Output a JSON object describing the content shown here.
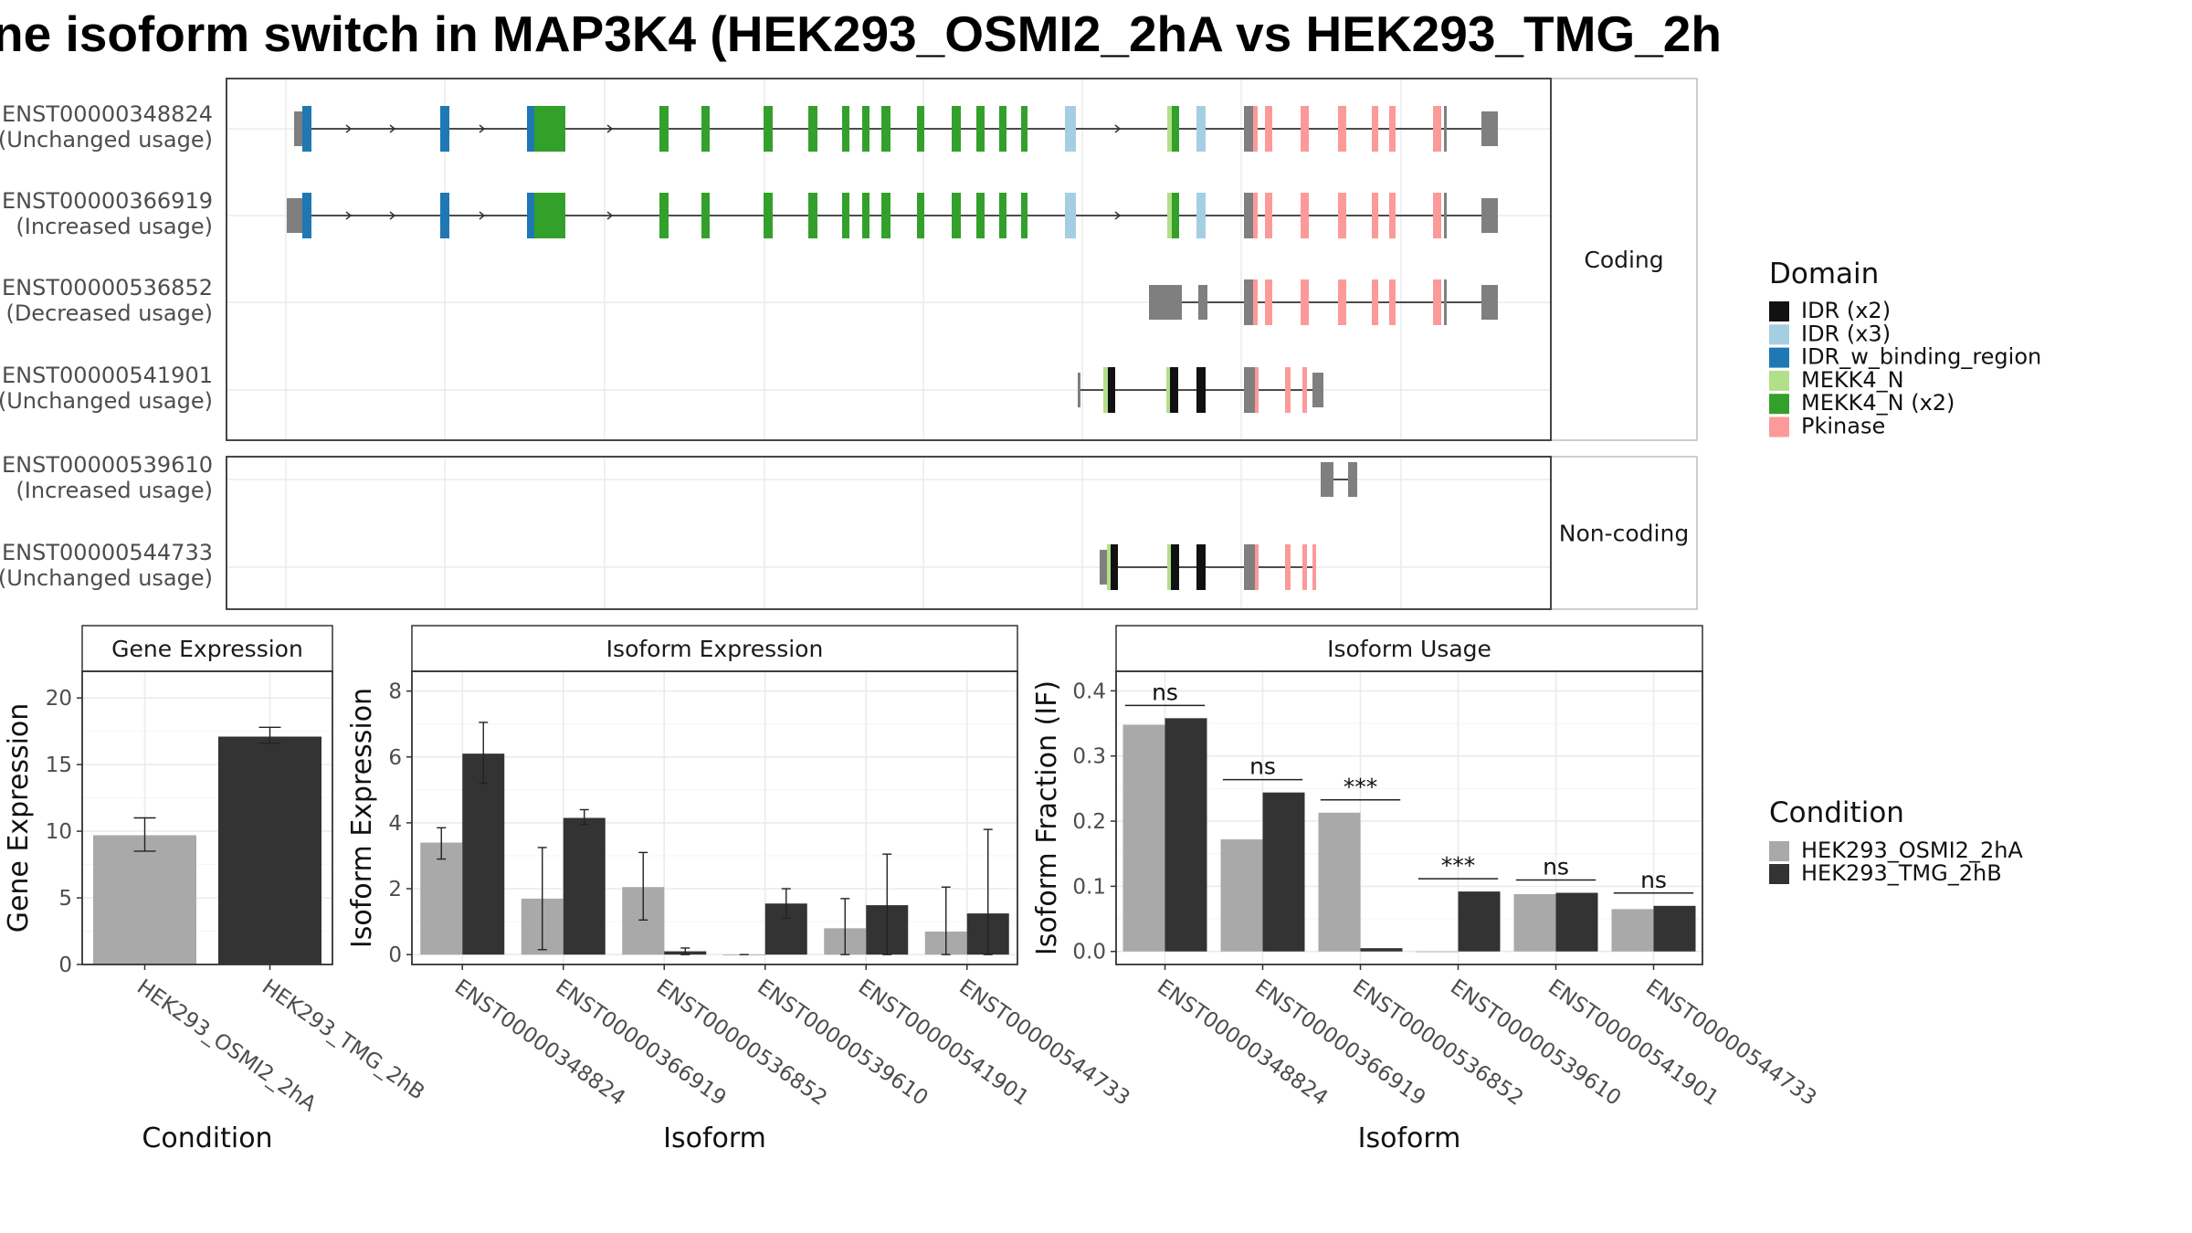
{
  "title": "ne isoform switch in MAP3K4 (HEK293_OSMI2_2hA vs HEK293_TMG_2h",
  "structure": {
    "groups": [
      {
        "name": "Coding",
        "transcripts": [
          {
            "id": "ENST00000348824",
            "usage": "(Unchanged usage)"
          },
          {
            "id": "ENST00000366919",
            "usage": "(Increased usage)"
          },
          {
            "id": "ENST00000536852",
            "usage": "(Decreased usage)"
          },
          {
            "id": "ENST00000541901",
            "usage": "(Unchanged usage)"
          }
        ]
      },
      {
        "name": "Non-coding",
        "transcripts": [
          {
            "id": "ENST00000539610",
            "usage": "(Increased usage)"
          },
          {
            "id": "ENST00000544733",
            "usage": "(Unchanged usage)"
          }
        ]
      }
    ]
  },
  "domain_legend": {
    "title": "Domain",
    "items": [
      {
        "label": "IDR (x2)",
        "color": "#111111"
      },
      {
        "label": "IDR (x3)",
        "color": "#a6cee3"
      },
      {
        "label": "IDR_w_binding_region",
        "color": "#1f78b4"
      },
      {
        "label": "MEKK4_N",
        "color": "#b2df8a"
      },
      {
        "label": "MEKK4_N (x2)",
        "color": "#33a02c"
      },
      {
        "label": "Pkinase",
        "color": "#fb9a99"
      }
    ]
  },
  "condition_legend": {
    "title": "Condition",
    "items": [
      {
        "label": "HEK293_OSMI2_2hA",
        "color": "#a9a9a9"
      },
      {
        "label": "HEK293_TMG_2hB",
        "color": "#333333"
      }
    ]
  },
  "chart_data": [
    {
      "type": "bar",
      "title": "Gene Expression",
      "xlabel": "Condition",
      "ylabel": "Gene Expression",
      "categories": [
        "HEK293_OSMI2_2hA",
        "HEK293_TMG_2hB"
      ],
      "values": [
        9.7,
        17.1
      ],
      "errors": [
        [
          8.5,
          11.0
        ],
        [
          16.6,
          17.8
        ]
      ],
      "ylim": [
        0,
        22
      ],
      "yticks": [
        0,
        5,
        10,
        15,
        20
      ]
    },
    {
      "type": "bar",
      "title": "Isoform Expression",
      "xlabel": "Isoform",
      "ylabel": "Isoform Expression",
      "categories": [
        "ENST00000348824",
        "ENST00000366919",
        "ENST00000536852",
        "ENST00000539610",
        "ENST00000541901",
        "ENST00000544733"
      ],
      "series": [
        {
          "name": "HEK293_OSMI2_2hA",
          "values": [
            3.4,
            1.7,
            2.05,
            0.0,
            0.8,
            0.7
          ],
          "errors": [
            [
              2.9,
              3.85
            ],
            [
              0.15,
              3.25
            ],
            [
              1.05,
              3.1
            ],
            [
              0.0,
              0.0
            ],
            [
              0.0,
              1.7
            ],
            [
              0.0,
              2.05
            ]
          ]
        },
        {
          "name": "HEK293_TMG_2hB",
          "values": [
            6.1,
            4.15,
            0.1,
            1.55,
            1.5,
            1.25
          ],
          "errors": [
            [
              5.2,
              7.05
            ],
            [
              3.95,
              4.4
            ],
            [
              0.0,
              0.2
            ],
            [
              1.1,
              2.0
            ],
            [
              0.0,
              3.05
            ],
            [
              0.0,
              3.8
            ]
          ]
        }
      ],
      "ylim": [
        -0.3,
        8.6
      ],
      "yticks": [
        0,
        2,
        4,
        6,
        8
      ]
    },
    {
      "type": "bar",
      "title": "Isoform Usage",
      "xlabel": "Isoform",
      "ylabel": "Isoform Fraction (IF)",
      "categories": [
        "ENST00000348824",
        "ENST00000366919",
        "ENST00000536852",
        "ENST00000539610",
        "ENST00000541901",
        "ENST00000544733"
      ],
      "series": [
        {
          "name": "HEK293_OSMI2_2hA",
          "values": [
            0.348,
            0.172,
            0.213,
            0.0,
            0.088,
            0.065
          ]
        },
        {
          "name": "HEK293_TMG_2hB",
          "values": [
            0.358,
            0.244,
            0.005,
            0.092,
            0.09,
            0.07
          ]
        }
      ],
      "significance": [
        "ns",
        "ns",
        "***",
        "***",
        "ns",
        "ns"
      ],
      "ylim": [
        -0.02,
        0.43
      ],
      "yticks": [
        0.0,
        0.1,
        0.2,
        0.3,
        0.4
      ]
    }
  ]
}
